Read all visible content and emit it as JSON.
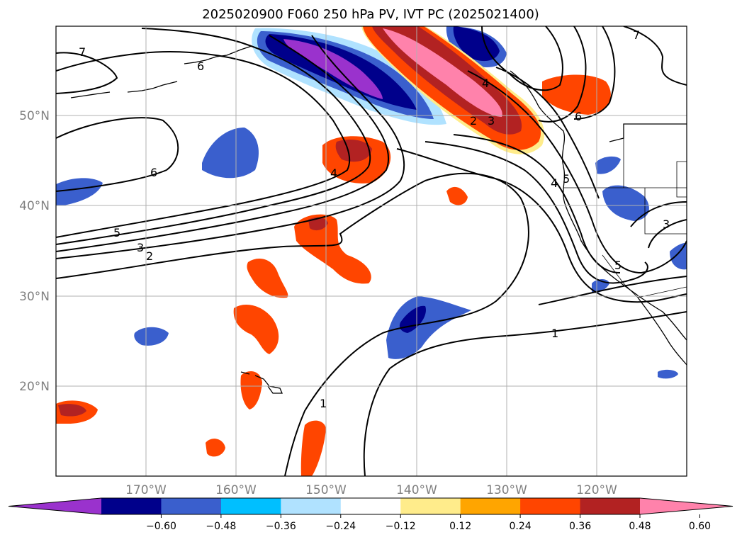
{
  "title": "2025020900 F060 250 hPa PV, IVT PC (2025021400)",
  "lon_labels": [
    "170°W",
    "160°W",
    "150°W",
    "140°W",
    "130°W",
    "120°W"
  ],
  "lat_labels": [
    "50°N",
    "40°N",
    "30°N",
    "20°N"
  ],
  "colorbar": {
    "ticks": [
      "−0.60",
      "−0.48",
      "−0.36",
      "−0.24",
      "−0.12",
      "0.12",
      "0.24",
      "0.36",
      "0.48",
      "0.60"
    ],
    "colors": [
      "#9a32cd",
      "#00008b",
      "#3a5fcd",
      "#00bfff",
      "#b0e2ff",
      "#ffffff",
      "#ffec8b",
      "#ffa500",
      "#ff4500",
      "#b22222",
      "#ff82ab"
    ]
  },
  "contour_labels": [
    "7",
    "6",
    "6",
    "5",
    "3",
    "2",
    "4",
    "4",
    "3",
    "2",
    "6",
    "5",
    "4",
    "3",
    "5",
    "1",
    "1",
    "7"
  ]
}
